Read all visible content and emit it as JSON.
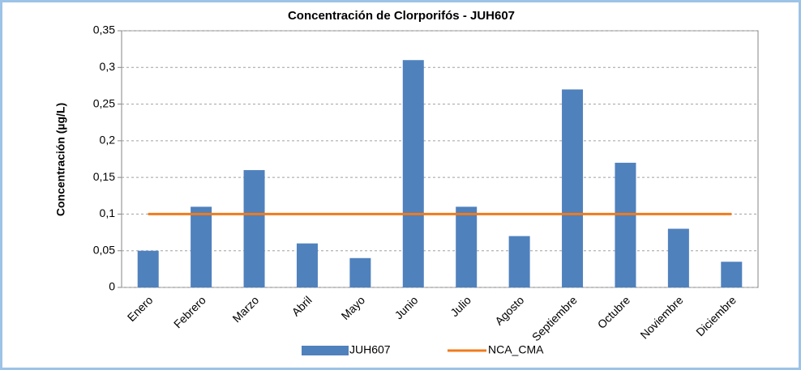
{
  "chart_data": {
    "type": "bar",
    "title": "Concentración de Clorporifós - JUH607",
    "ylabel": "Concentración (µg/L)",
    "categories": [
      "Enero",
      "Febrero",
      "Marzo",
      "Abril",
      "Mayo",
      "Junio",
      "Julio",
      "Agosto",
      "Septiembre",
      "Octubre",
      "Noviembre",
      "Diciembre"
    ],
    "series": [
      {
        "name": "JUH607",
        "type": "bar",
        "color": "#4f81bd",
        "values": [
          0.05,
          0.11,
          0.16,
          0.06,
          0.04,
          0.31,
          0.11,
          0.07,
          0.27,
          0.17,
          0.08,
          0.035
        ]
      },
      {
        "name": "NCA_CMA",
        "type": "line",
        "color": "#f07b1c",
        "values": [
          0.1,
          0.1,
          0.1,
          0.1,
          0.1,
          0.1,
          0.1,
          0.1,
          0.1,
          0.1,
          0.1,
          0.1
        ]
      }
    ],
    "ylim": [
      0,
      0.35
    ],
    "yticks": [
      0,
      {
        "value": 0.05,
        "label": "0,05"
      },
      {
        "value": 0.1,
        "label": "0,1"
      },
      {
        "value": 0.15,
        "label": "0,15"
      },
      {
        "value": 0.2,
        "label": "0,2"
      },
      {
        "value": 0.25,
        "label": "0,25"
      },
      {
        "value": 0.3,
        "label": "0,3"
      },
      {
        "value": 0.35,
        "label": "0,35"
      }
    ],
    "grid": true,
    "legend": "bottom"
  }
}
